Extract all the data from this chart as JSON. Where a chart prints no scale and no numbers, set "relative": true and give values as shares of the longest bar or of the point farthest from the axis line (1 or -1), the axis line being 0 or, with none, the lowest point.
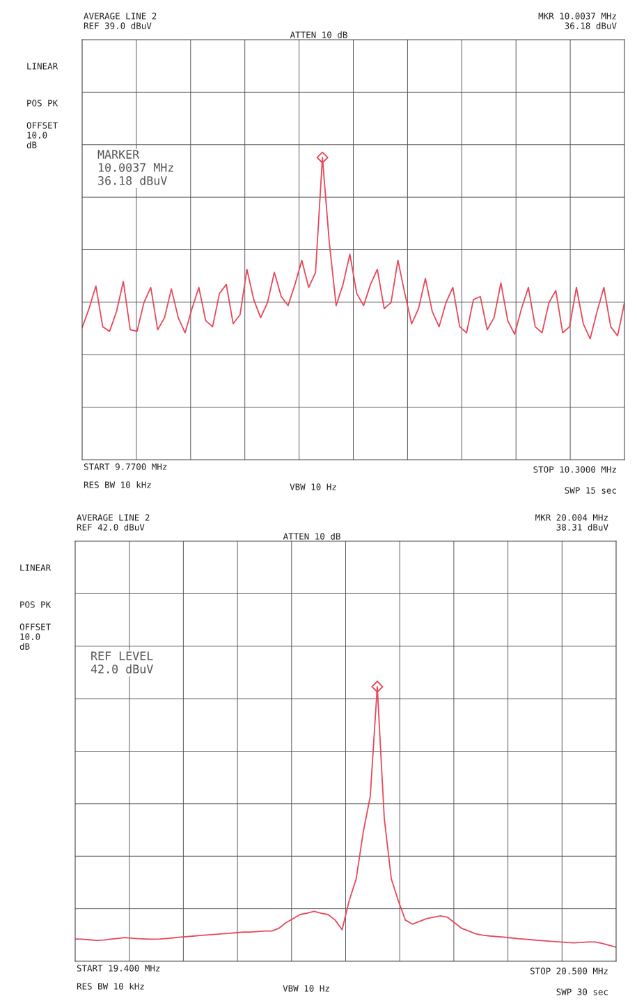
{
  "chart_data": [
    {
      "type": "line",
      "relative": true,
      "grid": true,
      "ylim": [
        0,
        1.39
      ],
      "annotations": [
        "AVERAGE LINE 2",
        "REF 39.0 dBuV",
        "ATTEN 10 dB",
        "MKR 10.0037 MHz",
        "36.18 dBuV",
        "LINEAR",
        "POS PK",
        "OFFSET\n10.0\ndB",
        "MARKER\n10.0037 MHz\n36.18 dBuV",
        "RES BW 10 kHz",
        "VBW 10 Hz",
        "SWP 15 sec",
        "START 9.7700 MHz",
        "STOP 10.3000 MHz"
      ],
      "categories": [
        null,
        null,
        null,
        null,
        null,
        null,
        null,
        null,
        null,
        null,
        null,
        null,
        null,
        null,
        null,
        null,
        null,
        null,
        null,
        null,
        null,
        null,
        null,
        null,
        null,
        null,
        null,
        null,
        null,
        null,
        null,
        null,
        null,
        null,
        null,
        null,
        null,
        null,
        null,
        null,
        null,
        null,
        null,
        null,
        null,
        null,
        null,
        null,
        null,
        null,
        null,
        null,
        null,
        null,
        null,
        null,
        null,
        null,
        null,
        null,
        null,
        null,
        null,
        null,
        null,
        null,
        null,
        null,
        null,
        null,
        null,
        null,
        null,
        null,
        null,
        null,
        null,
        null,
        null,
        null
      ],
      "series": [
        {
          "type": "line",
          "color": "#e8485a",
          "values": [
            0.437,
            0.5,
            0.575,
            0.44,
            0.425,
            0.49,
            0.59,
            0.43,
            0.425,
            0.52,
            0.57,
            0.43,
            0.47,
            0.565,
            0.47,
            0.42,
            0.5,
            0.57,
            0.46,
            0.44,
            0.55,
            0.58,
            0.45,
            0.48,
            0.63,
            0.53,
            0.47,
            0.52,
            0.62,
            0.54,
            0.51,
            0.58,
            0.66,
            0.57,
            0.62,
            1.0,
            0.72,
            0.51,
            0.58,
            0.68,
            0.55,
            0.51,
            0.58,
            0.63,
            0.5,
            0.52,
            0.66,
            0.55,
            0.45,
            0.5,
            0.6,
            0.49,
            0.44,
            0.52,
            0.57,
            0.44,
            0.42,
            0.53,
            0.54,
            0.43,
            0.47,
            0.585,
            0.46,
            0.415,
            0.5,
            0.57,
            0.44,
            0.42,
            0.52,
            0.56,
            0.42,
            0.44,
            0.57,
            0.45,
            0.4,
            0.49,
            0.57,
            0.44,
            0.41,
            0.52
          ]
        }
      ]
    },
    {
      "type": "line",
      "relative": true,
      "grid": true,
      "ylim": [
        0,
        1.53
      ],
      "annotations": [
        "AVERAGE LINE 2",
        "REF 42.0 dBuV",
        "ATTEN 10 dB",
        "MKR 20.004 MHz",
        "38.31 dBuV",
        "LINEAR",
        "POS PK",
        "OFFSET\n10.0\ndB",
        "REF LEVEL\n42.0 dBuV",
        "RES BW 10 kHz",
        "VBW 10 Hz",
        "SWP 30 sec",
        "START 19.400 MHz",
        "STOP 20.500 MHz"
      ],
      "categories": [
        null,
        null,
        null,
        null,
        null,
        null,
        null,
        null,
        null,
        null,
        null,
        null,
        null,
        null,
        null,
        null,
        null,
        null,
        null,
        null,
        null,
        null,
        null,
        null,
        null,
        null,
        null,
        null,
        null,
        null,
        null,
        null,
        null,
        null,
        null,
        null,
        null,
        null,
        null,
        null,
        null,
        null,
        null,
        null,
        null,
        null,
        null,
        null,
        null,
        null,
        null,
        null,
        null,
        null,
        null,
        null,
        null,
        null,
        null,
        null,
        null,
        null,
        null,
        null,
        null,
        null,
        null,
        null,
        null,
        null,
        null,
        null,
        null,
        null,
        null,
        null,
        null,
        null
      ],
      "series": [
        {
          "type": "line",
          "color": "#e8485a",
          "values": [
            0.081,
            0.08,
            0.078,
            0.076,
            0.077,
            0.08,
            0.083,
            0.086,
            0.084,
            0.082,
            0.081,
            0.08,
            0.081,
            0.083,
            0.085,
            0.088,
            0.09,
            0.092,
            0.094,
            0.096,
            0.098,
            0.1,
            0.102,
            0.104,
            0.106,
            0.106,
            0.108,
            0.11,
            0.11,
            0.12,
            0.14,
            0.155,
            0.17,
            0.175,
            0.182,
            0.175,
            0.17,
            0.15,
            0.115,
            0.22,
            0.3,
            0.47,
            0.6,
            1.0,
            0.52,
            0.3,
            0.22,
            0.15,
            0.135,
            0.145,
            0.155,
            0.16,
            0.165,
            0.16,
            0.14,
            0.12,
            0.11,
            0.1,
            0.095,
            0.092,
            0.09,
            0.088,
            0.085,
            0.082,
            0.08,
            0.078,
            0.076,
            0.074,
            0.072,
            0.07,
            0.068,
            0.067,
            0.068,
            0.07,
            0.07,
            0.065,
            0.058,
            0.051
          ]
        }
      ]
    }
  ]
}
